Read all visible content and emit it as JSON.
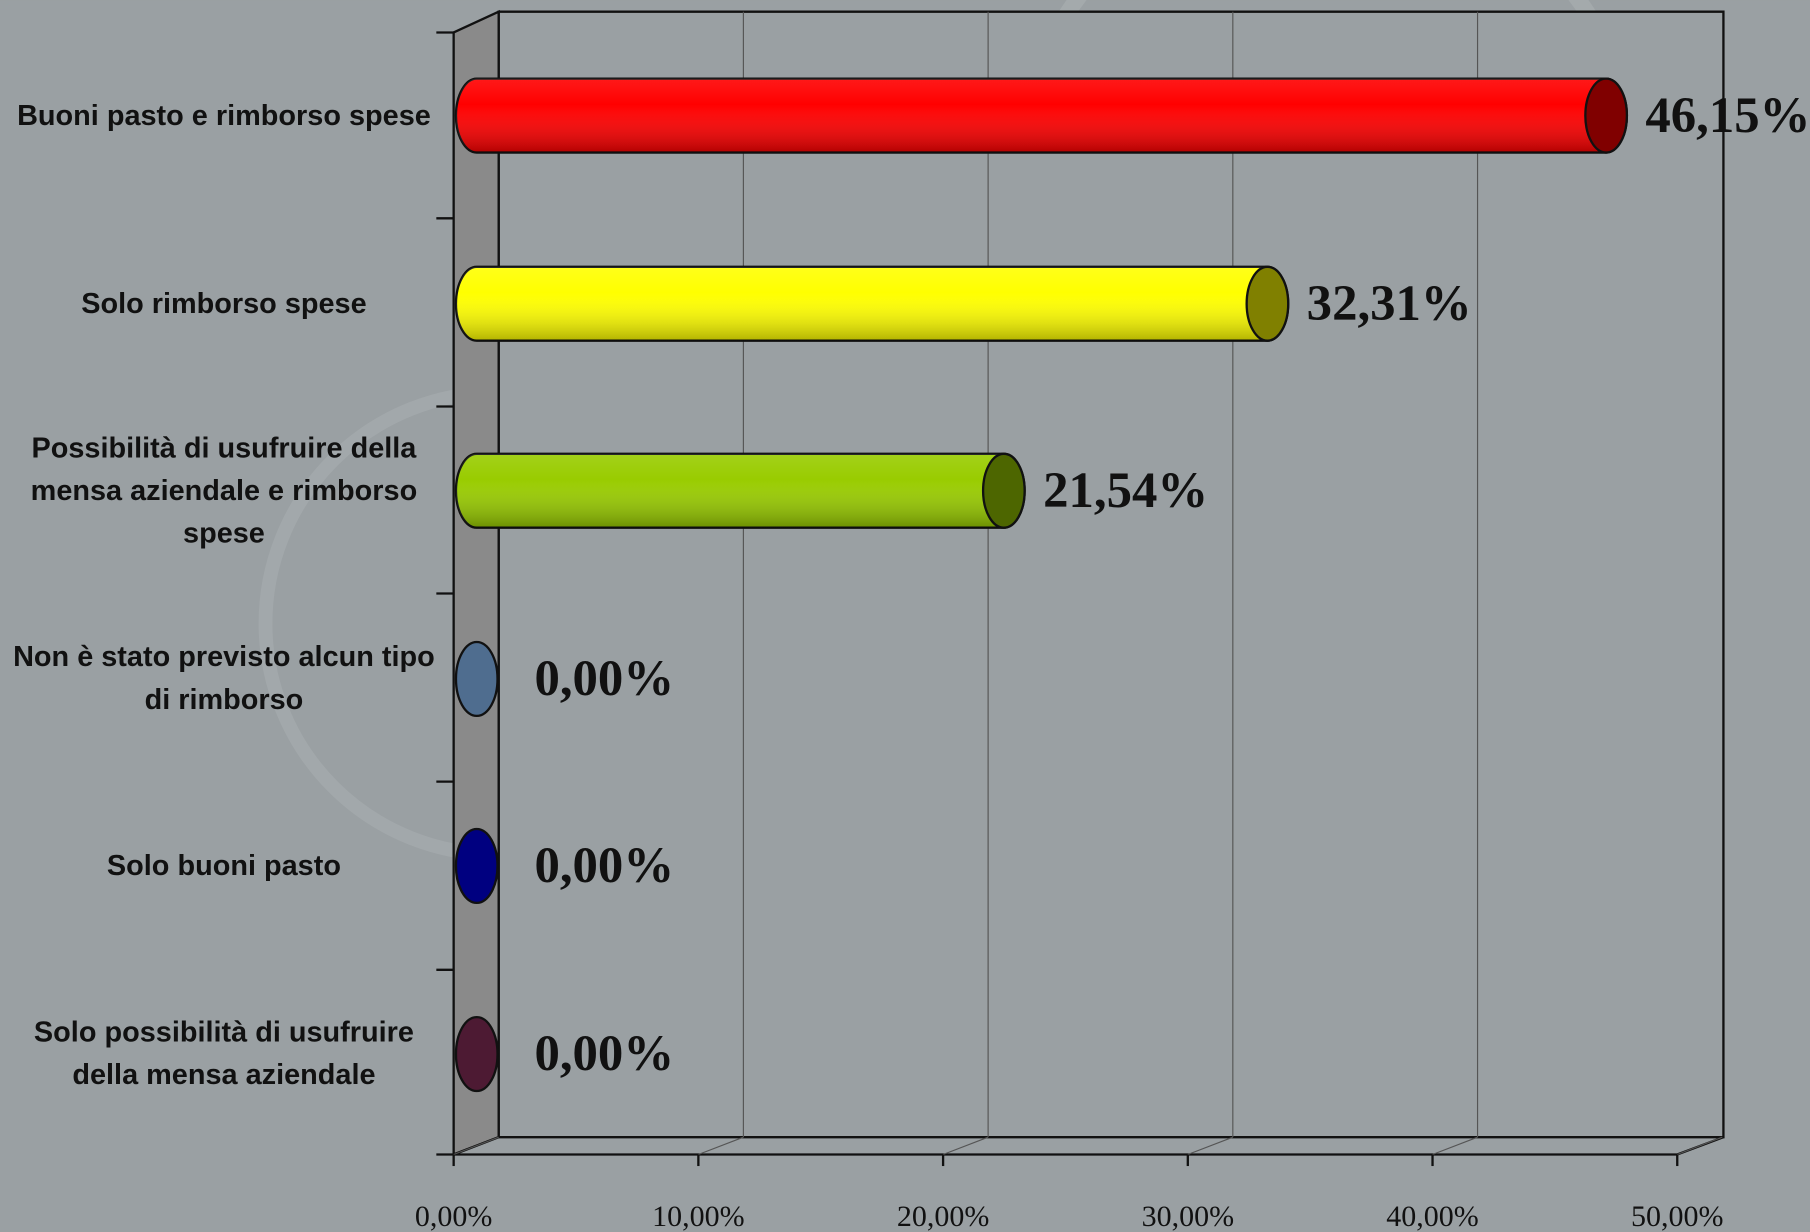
{
  "chart_data": {
    "type": "bar3d-horizontal",
    "categories": [
      "Buoni pasto e rimborso spese",
      "Solo rimborso spese",
      "Possibilità di usufruire della mensa aziendale e rimborso spese",
      "Non è stato previsto alcun tipo di rimborso",
      "Solo buoni pasto",
      "Solo possibilità di usufruire della mensa aziendale"
    ],
    "values": [
      46.15,
      32.31,
      21.54,
      0,
      0,
      0
    ],
    "value_labels": [
      "46,15%",
      "32,31%",
      "21,54%",
      "0,00%",
      "0,00%",
      "0,00%"
    ],
    "colors": [
      "#ff0000",
      "#ffff00",
      "#99cc00",
      "#4f6d8f",
      "#000080",
      "#4d1a33"
    ],
    "xlim": [
      0,
      50
    ],
    "xticks": [
      {
        "value": 0,
        "label": "0,00%"
      },
      {
        "value": 10,
        "label": "10,00%"
      },
      {
        "value": 20,
        "label": "20,00%"
      },
      {
        "value": 30,
        "label": "30,00%"
      },
      {
        "value": 40,
        "label": "40,00%"
      },
      {
        "value": 50,
        "label": "50,00%"
      }
    ],
    "grid": true
  }
}
